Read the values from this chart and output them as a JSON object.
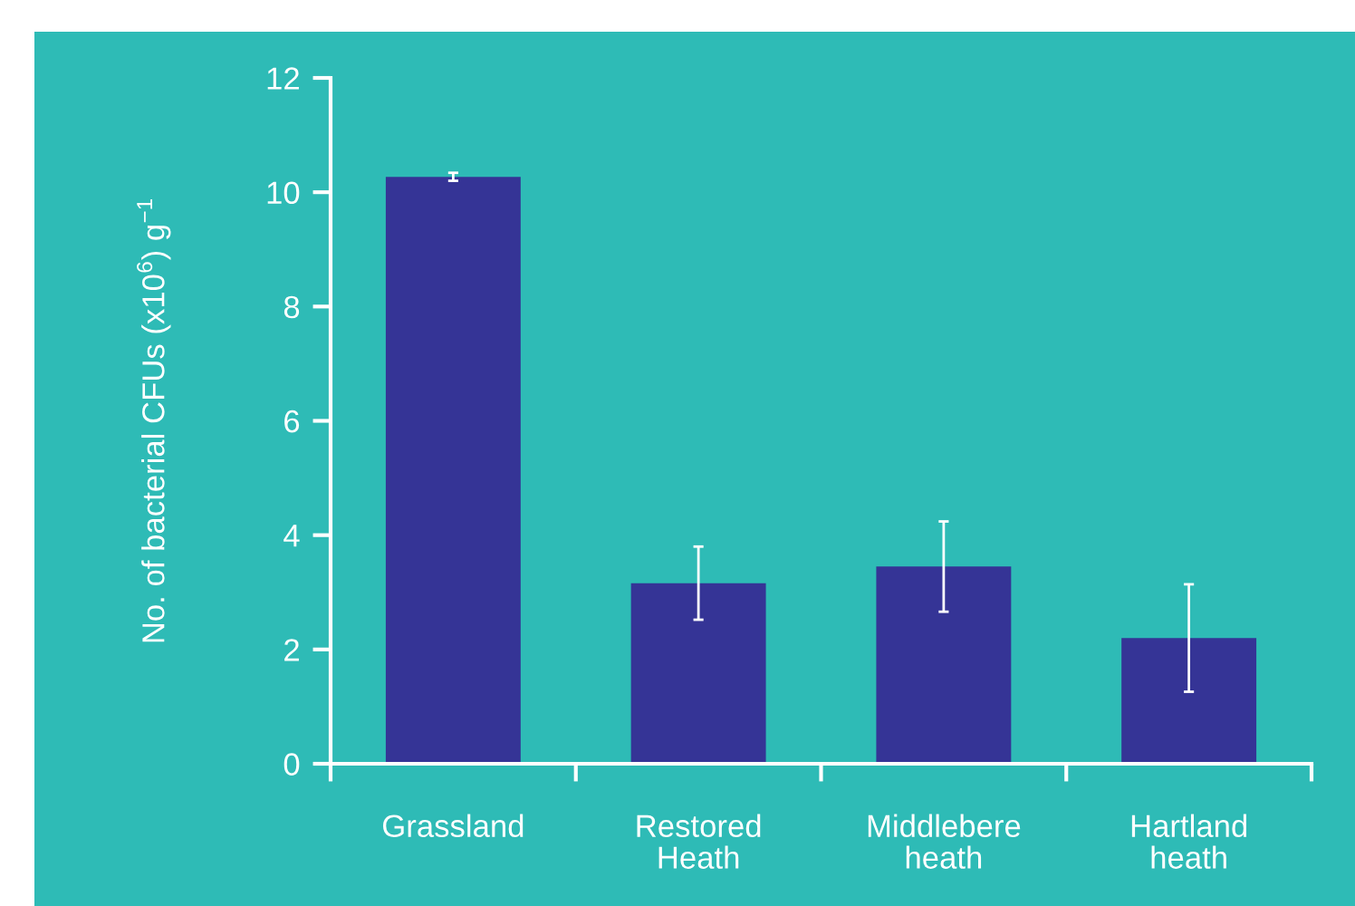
{
  "chart_data": {
    "type": "bar",
    "ylabel": "No. of bacterial CFUs (x10$^{6}$) g$^{−1}$",
    "categories": [
      "Grassland",
      "Restored Heath",
      "Middlebere heath",
      "Hartland heath"
    ],
    "values": [
      10.27,
      3.16,
      3.45,
      2.2
    ],
    "errors": [
      0.07,
      0.64,
      0.79,
      0.94
    ],
    "color": "#353496",
    "ylim": [
      0,
      12
    ],
    "yticks": [
      0,
      2,
      4,
      6,
      8,
      10,
      12
    ],
    "grid": false
  }
}
